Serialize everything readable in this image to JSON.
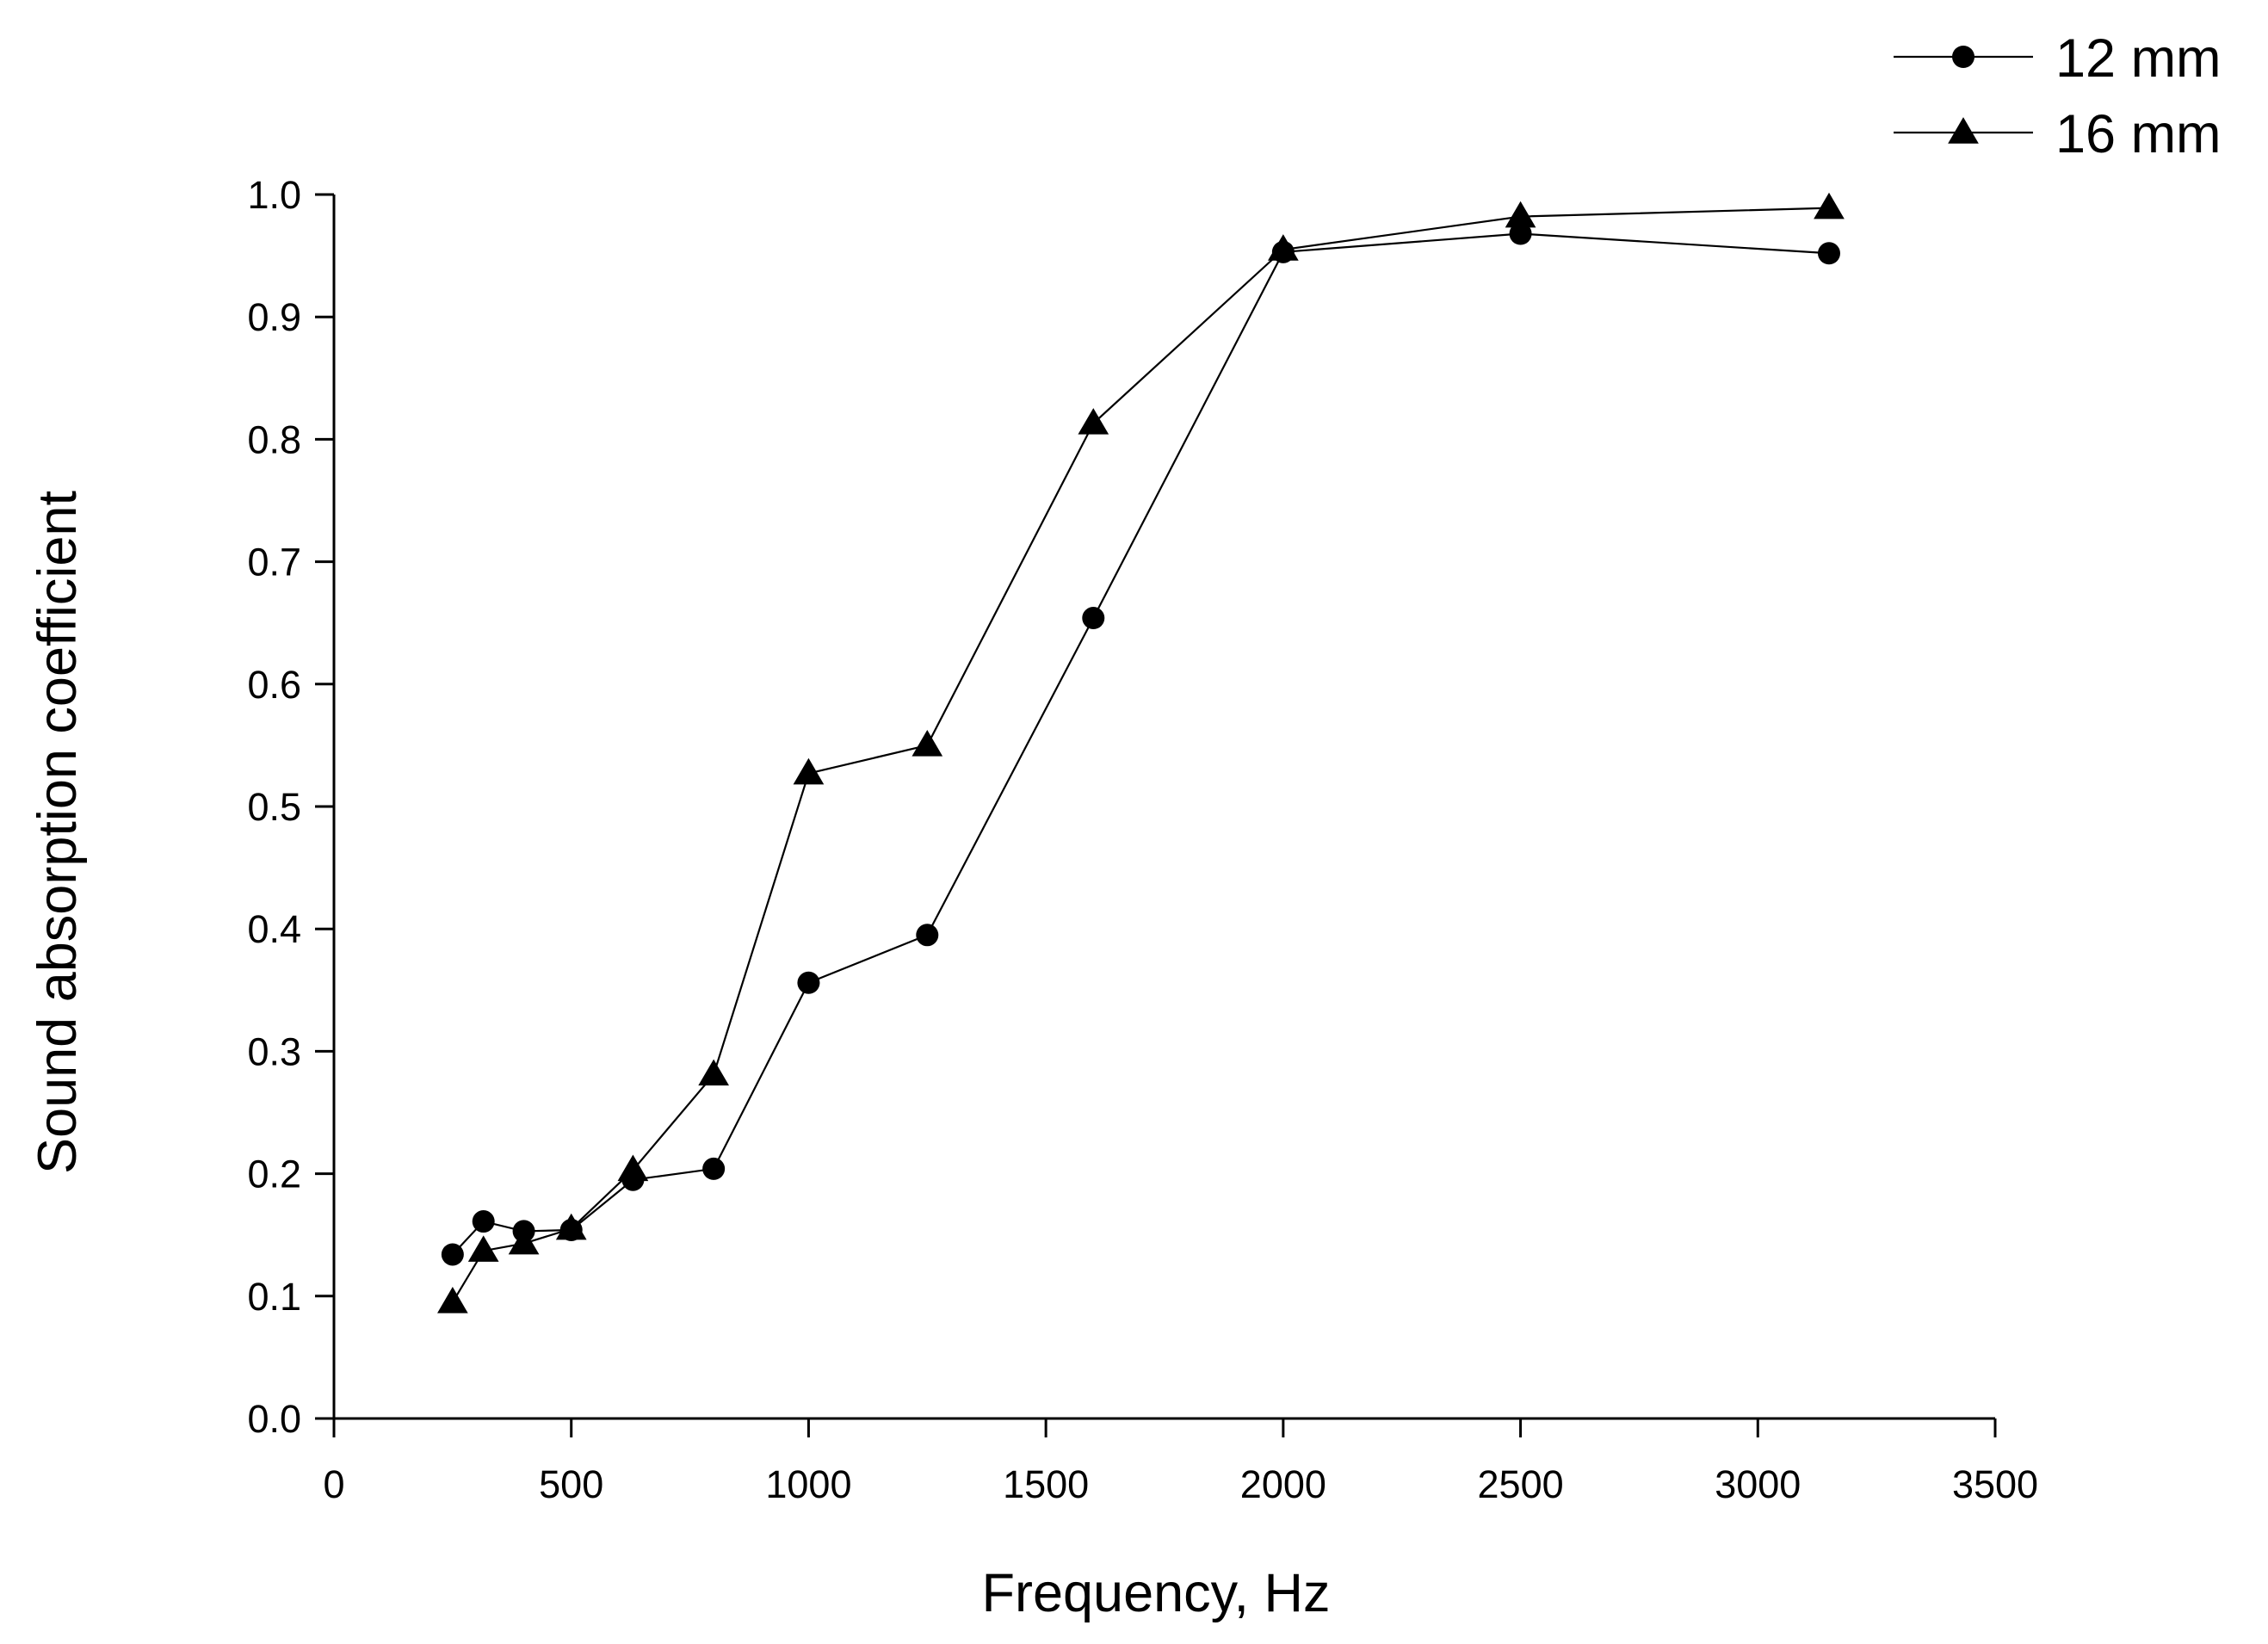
{
  "chart_data": {
    "type": "line",
    "title": "",
    "xlabel": "Frequency, Hz",
    "ylabel": "Sound absorption coefficient",
    "xlim": [
      0,
      3500
    ],
    "ylim": [
      0.0,
      1.0
    ],
    "x_ticks": [
      0,
      500,
      1000,
      1500,
      2000,
      2500,
      3000,
      3500
    ],
    "x_tick_labels": [
      "0",
      "500",
      "1000",
      "1500",
      "2000",
      "2500",
      "3000",
      "3500"
    ],
    "y_ticks": [
      0.0,
      0.1,
      0.2,
      0.3,
      0.4,
      0.5,
      0.6,
      0.7,
      0.8,
      0.9,
      1.0
    ],
    "y_tick_labels": [
      "0.0",
      "0.1",
      "0.2",
      "0.3",
      "0.4",
      "0.5",
      "0.6",
      "0.7",
      "0.8",
      "0.9",
      "1.0"
    ],
    "grid": false,
    "legend_position": "top-right",
    "series": [
      {
        "name": "12 mm",
        "marker": "circle",
        "color": "#000000",
        "x": [
          250,
          315,
          400,
          500,
          630,
          800,
          1000,
          1250,
          1600,
          2000,
          2500,
          3150
        ],
        "values": [
          0.134,
          0.161,
          0.153,
          0.154,
          0.195,
          0.204,
          0.356,
          0.395,
          0.654,
          0.953,
          0.968,
          0.952
        ]
      },
      {
        "name": "16 mm",
        "marker": "triangle",
        "color": "#000000",
        "x": [
          250,
          315,
          400,
          500,
          630,
          800,
          1000,
          1250,
          1600,
          2000,
          2500,
          3150
        ],
        "values": [
          0.095,
          0.137,
          0.143,
          0.155,
          0.203,
          0.281,
          0.527,
          0.55,
          0.813,
          0.955,
          0.982,
          0.989
        ]
      }
    ]
  }
}
